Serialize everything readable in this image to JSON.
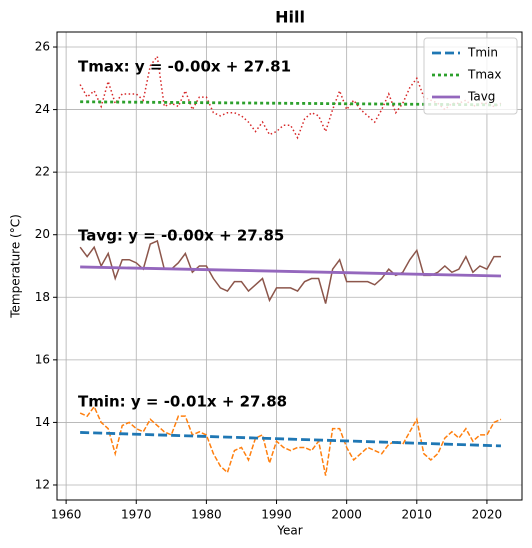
{
  "chart_data": {
    "type": "line",
    "title": "Hill",
    "xlabel": "Year",
    "ylabel": "Temperature (°C)",
    "xlim": [
      1958.7,
      2025
    ],
    "xticks": [
      1960,
      1970,
      1980,
      1990,
      2000,
      2010,
      2020
    ],
    "ylim": [
      11.52,
      26.48
    ],
    "yticks": [
      12,
      14,
      16,
      18,
      20,
      22,
      24,
      26
    ],
    "grid": true,
    "legend": "upper right",
    "annotations": [
      "Tmax: y = -0.00x + 27.81",
      "Tavg: y = -0.00x + 27.85",
      "Tmin: y = -0.01x + 27.88"
    ],
    "x": [
      1962,
      1963,
      1964,
      1965,
      1966,
      1967,
      1968,
      1969,
      1970,
      1971,
      1972,
      1973,
      1974,
      1975,
      1976,
      1977,
      1978,
      1979,
      1980,
      1981,
      1982,
      1983,
      1984,
      1985,
      1986,
      1987,
      1988,
      1989,
      1990,
      1991,
      1992,
      1993,
      1994,
      1995,
      1996,
      1997,
      1998,
      1999,
      2000,
      2001,
      2002,
      2003,
      2004,
      2005,
      2006,
      2007,
      2008,
      2009,
      2010,
      2011,
      2012,
      2013,
      2014,
      2015,
      2016,
      2017,
      2018,
      2019,
      2020,
      2021,
      2022
    ],
    "series": [
      {
        "color": "#d62728",
        "style": "dotted",
        "values": [
          24.8,
          24.4,
          24.6,
          24.1,
          24.9,
          24.2,
          24.5,
          24.5,
          24.5,
          24.3,
          25.4,
          25.7,
          24.1,
          24.2,
          24.1,
          24.6,
          24.0,
          24.4,
          24.4,
          23.9,
          23.8,
          23.9,
          23.9,
          23.8,
          23.6,
          23.3,
          23.6,
          23.2,
          23.3,
          23.5,
          23.5,
          23.1,
          23.7,
          23.9,
          23.8,
          23.3,
          24.0,
          24.6,
          24.0,
          24.3,
          24.0,
          23.8,
          23.6,
          24.0,
          24.5,
          23.9,
          24.2,
          24.7,
          25.0,
          24.4,
          24.3,
          24.2,
          24.0,
          24.2,
          24.2,
          24.3,
          24.1,
          24.2,
          24.2,
          24.1,
          24.2
        ]
      },
      {
        "color": "#8c564b",
        "style": "solid",
        "values": [
          19.6,
          19.3,
          19.6,
          19.0,
          19.4,
          18.6,
          19.2,
          19.2,
          19.1,
          18.9,
          19.7,
          19.8,
          18.9,
          18.9,
          19.1,
          19.4,
          18.8,
          19.0,
          19.0,
          18.6,
          18.3,
          18.2,
          18.5,
          18.5,
          18.2,
          18.4,
          18.6,
          17.9,
          18.3,
          18.3,
          18.3,
          18.2,
          18.5,
          18.6,
          18.6,
          17.8,
          18.9,
          19.2,
          18.5,
          18.5,
          18.5,
          18.5,
          18.4,
          18.6,
          18.9,
          18.7,
          18.8,
          19.2,
          19.5,
          18.7,
          18.7,
          18.8,
          19.0,
          18.8,
          18.9,
          19.3,
          18.8,
          19.0,
          18.9,
          19.3,
          19.3
        ]
      },
      {
        "color": "#ff7f0e",
        "style": "dashed",
        "values": [
          14.3,
          14.2,
          14.5,
          14.0,
          13.8,
          13.0,
          13.9,
          14.0,
          13.8,
          13.7,
          14.1,
          13.9,
          13.7,
          13.6,
          14.2,
          14.2,
          13.6,
          13.7,
          13.6,
          13.0,
          12.6,
          12.4,
          13.1,
          13.2,
          12.8,
          13.5,
          13.6,
          12.7,
          13.4,
          13.2,
          13.1,
          13.2,
          13.2,
          13.1,
          13.4,
          12.3,
          13.8,
          13.8,
          13.2,
          12.8,
          13.0,
          13.2,
          13.1,
          13.0,
          13.3,
          13.4,
          13.3,
          13.7,
          14.1,
          13.0,
          12.8,
          13.0,
          13.5,
          13.7,
          13.5,
          13.8,
          13.4,
          13.6,
          13.6,
          14.0,
          14.1
        ]
      },
      {
        "name": "Tmin",
        "color": "#1f77b4",
        "style": "dashed",
        "x": [
          1962,
          2022
        ],
        "values": [
          13.68,
          13.25
        ]
      },
      {
        "name": "Tmax",
        "color": "#2ca02c",
        "style": "dotted",
        "x": [
          1962,
          2022
        ],
        "values": [
          24.25,
          24.15
        ]
      },
      {
        "name": "Tavg",
        "color": "#9467bd",
        "style": "solid",
        "x": [
          1962,
          2022
        ],
        "values": [
          18.97,
          18.68
        ]
      }
    ]
  }
}
